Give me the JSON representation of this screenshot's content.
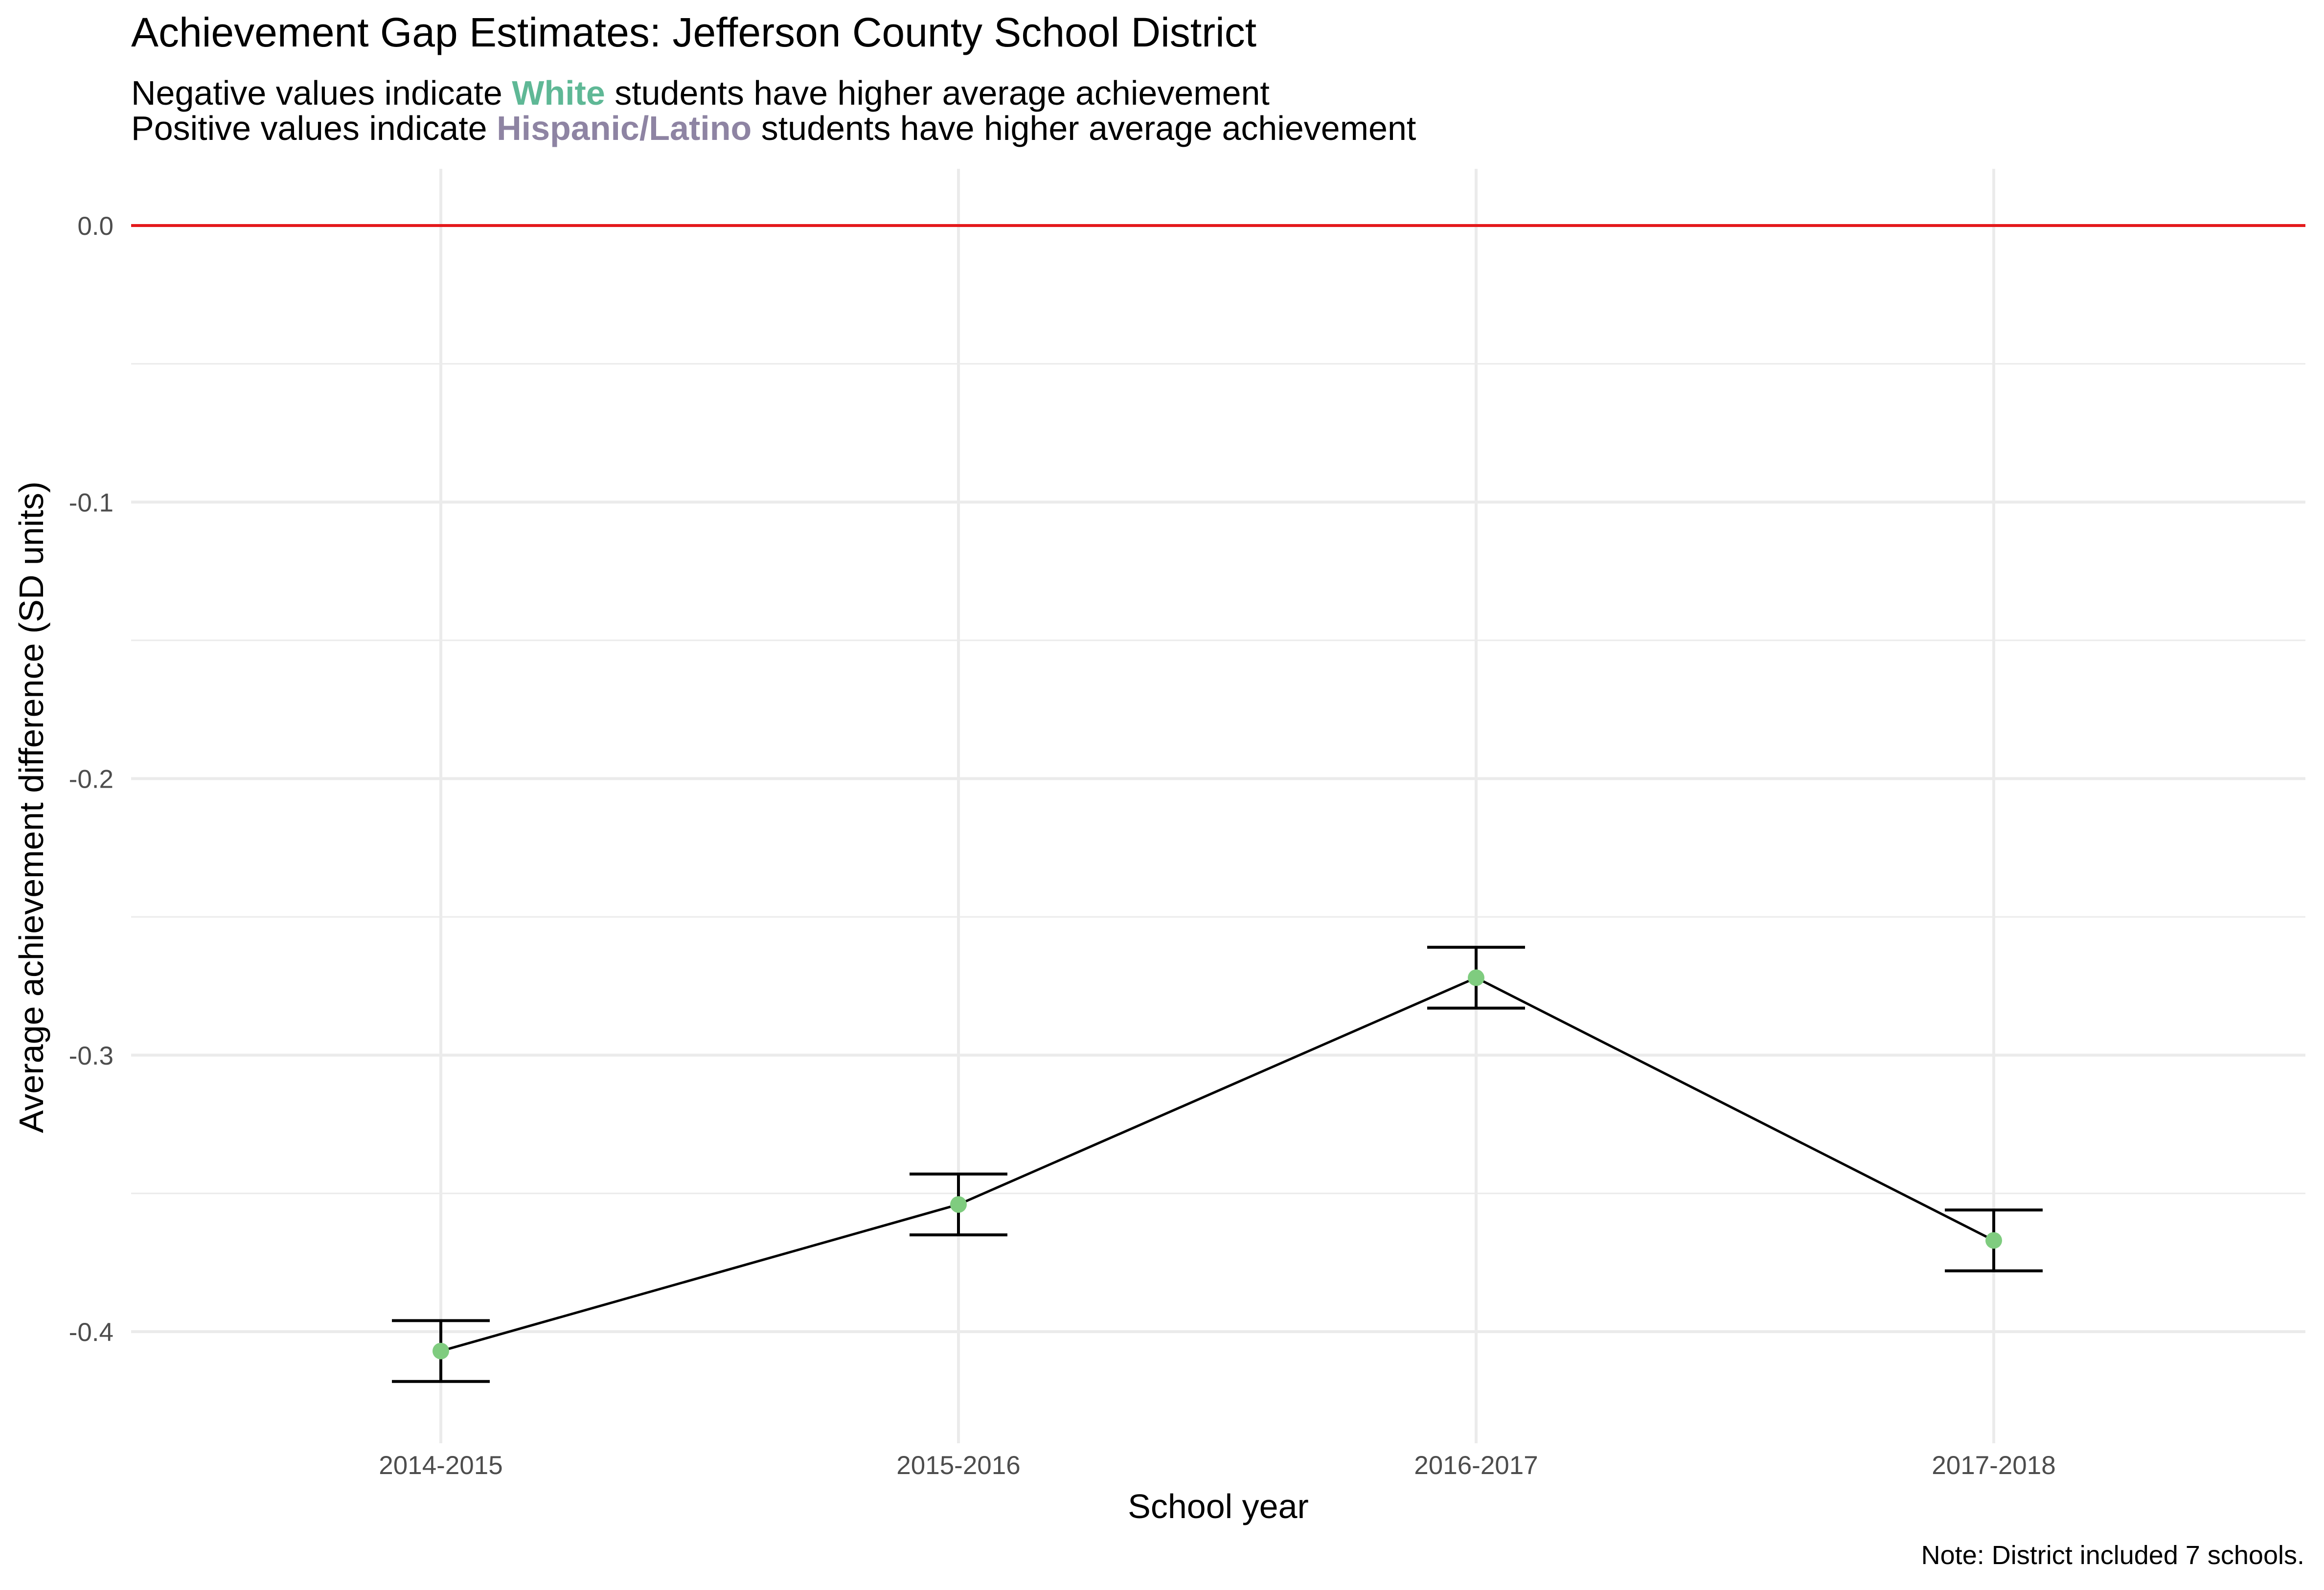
{
  "title": "Achievement Gap Estimates: Jefferson County School District",
  "subtitle": {
    "line1_pre": "Negative values indicate ",
    "line1_highlight": "White",
    "line1_post": " students have higher average achievement",
    "line2_pre": "Positive values indicate ",
    "line2_highlight": "Hispanic/Latino",
    "line2_post": " students have higher average achievement"
  },
  "caption": "Note: District included 7 schools.",
  "colors": {
    "white_group": "#5fb896",
    "hispanic_group": "#8e84a3",
    "reference_line": "#e41a1c",
    "point": "#7fcc7f",
    "line": "#000000",
    "grid": "#ebebeb"
  },
  "chart_data": {
    "type": "line",
    "title": "Achievement Gap Estimates: Jefferson County School District",
    "xlabel": "School year",
    "ylabel": "Average achievement difference (SD units)",
    "categories": [
      "2014-2015",
      "2015-2016",
      "2016-2017",
      "2017-2018"
    ],
    "values": [
      -0.407,
      -0.354,
      -0.272,
      -0.367
    ],
    "error_lower": [
      -0.418,
      -0.365,
      -0.283,
      -0.378
    ],
    "error_upper": [
      -0.396,
      -0.343,
      -0.261,
      -0.356
    ],
    "reference_line": 0.0,
    "ylim": [
      -0.44,
      0.02
    ],
    "yticks": [
      0.0,
      -0.1,
      -0.2,
      -0.3,
      -0.4
    ],
    "ytick_labels": [
      "0.0",
      "-0.1",
      "-0.2",
      "-0.3",
      "-0.4"
    ],
    "grid": true
  }
}
